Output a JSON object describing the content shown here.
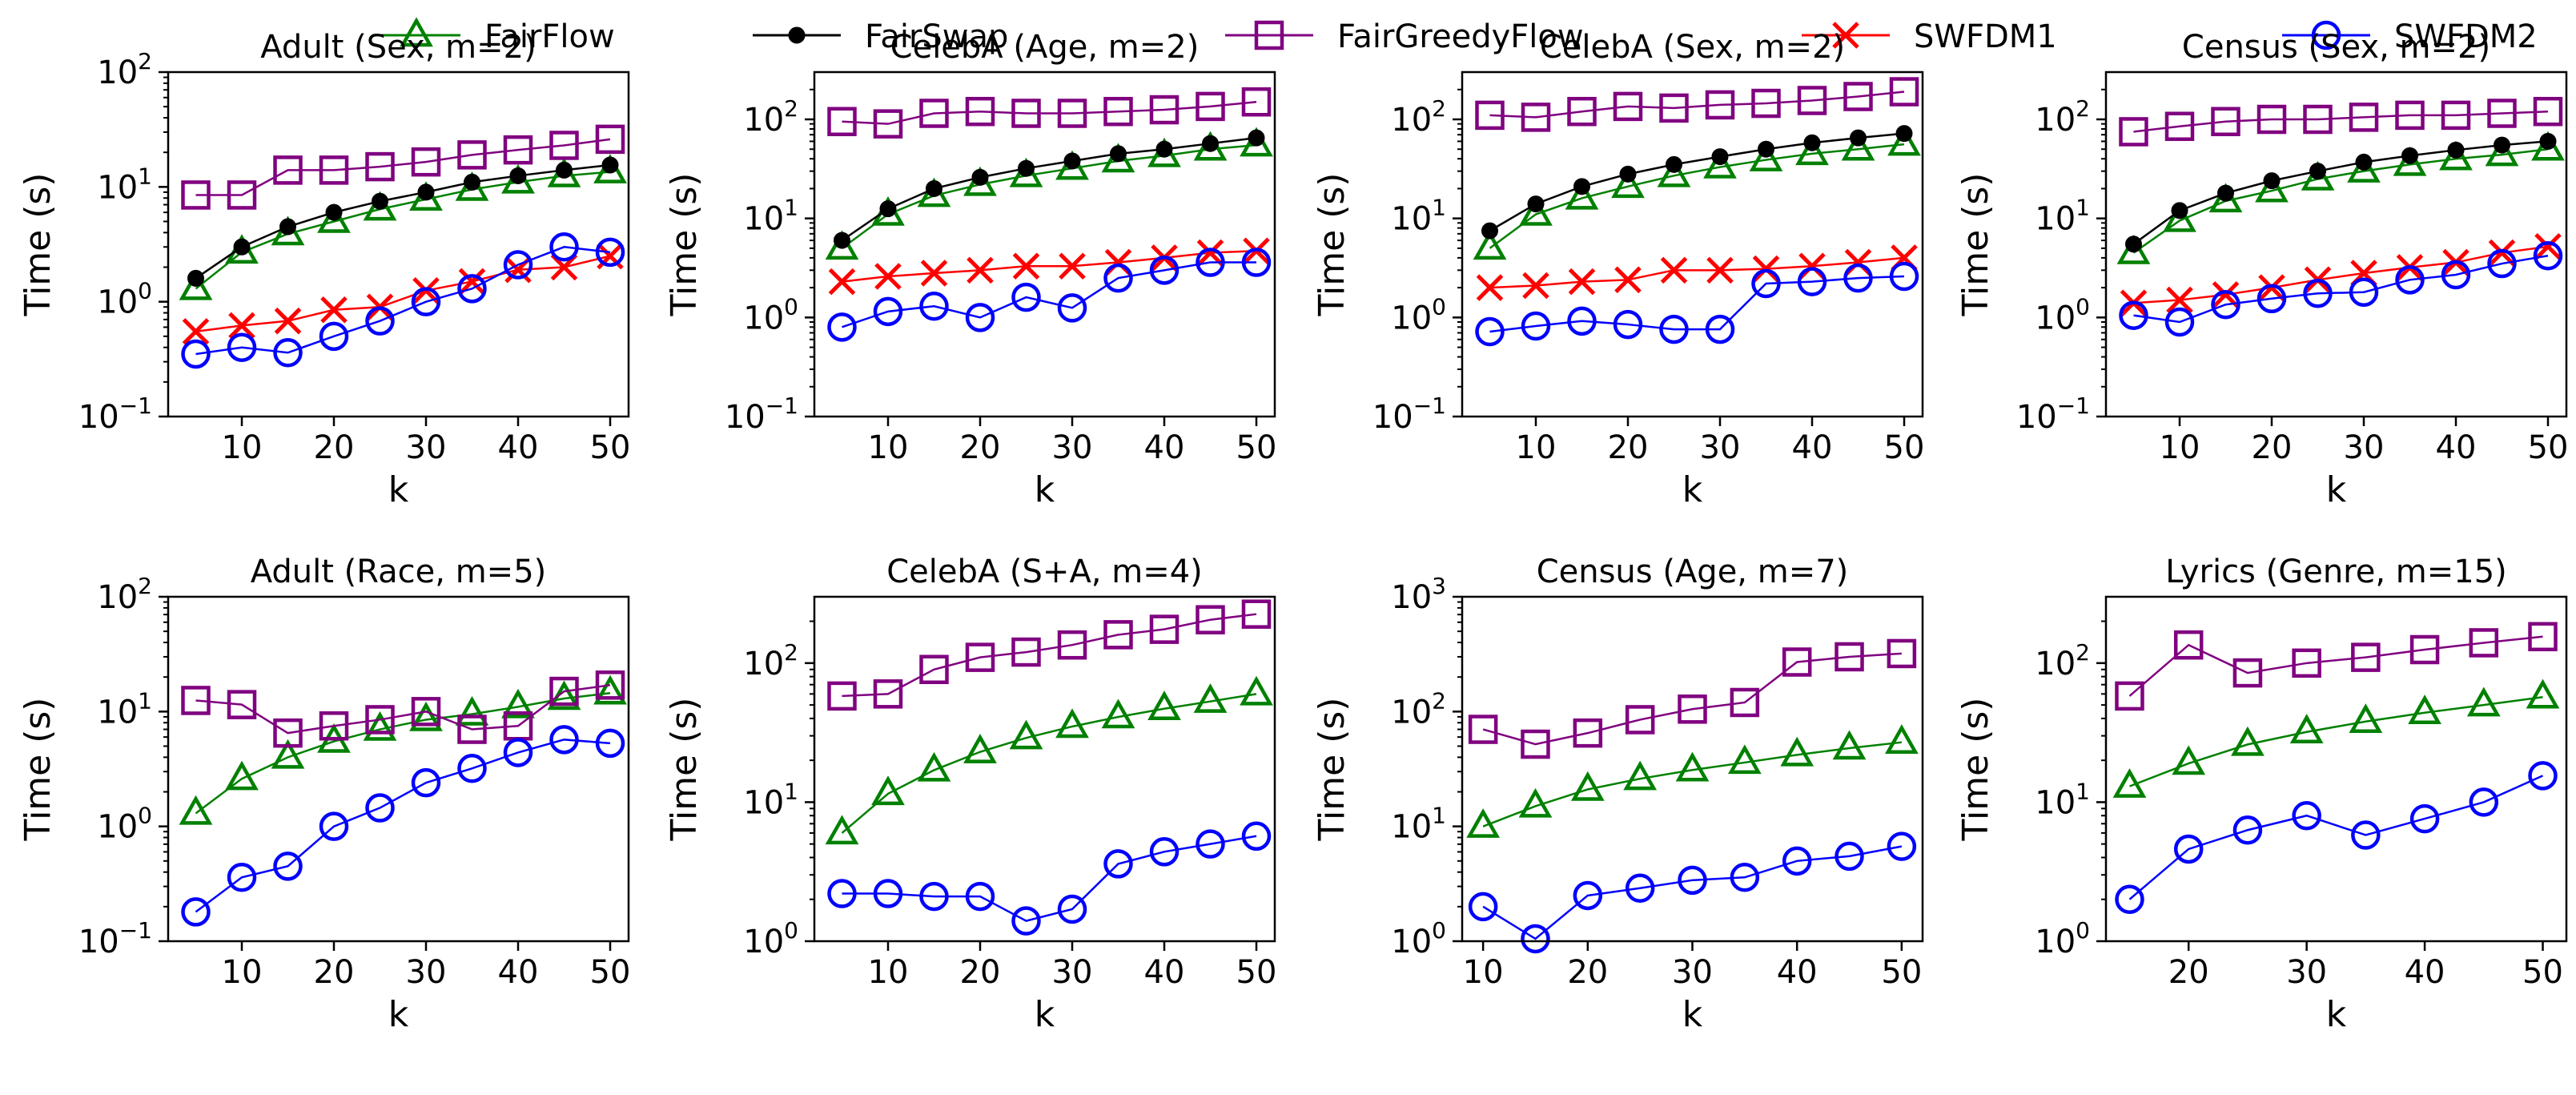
{
  "legend": [
    {
      "name": "FairFlow",
      "color": "#008000",
      "marker": "triangle"
    },
    {
      "name": "FairSwap",
      "color": "#000000",
      "marker": "dot"
    },
    {
      "name": "FairGreedyFlow",
      "color": "#800080",
      "marker": "square"
    },
    {
      "name": "SWFDM1",
      "color": "#ff0000",
      "marker": "x"
    },
    {
      "name": "SWFDM2",
      "color": "#0000ff",
      "marker": "circle"
    }
  ],
  "chart_data": [
    {
      "type": "line",
      "title": "Adult (Sex, m=2)",
      "xlabel": "k",
      "ylabel": "Time (s)",
      "yscale": "log",
      "xlim": [
        2,
        52
      ],
      "ylim": [
        0.1,
        100
      ],
      "xticks": [
        10,
        20,
        30,
        40,
        50
      ],
      "xtick_labels": [
        "10",
        "20",
        "30",
        "40",
        "50"
      ],
      "yticks": [
        0.1,
        1,
        10,
        100
      ],
      "ytick_labels": [
        [
          "10",
          "−1"
        ],
        [
          "10",
          "0"
        ],
        [
          "10",
          "1"
        ],
        [
          "10",
          "2"
        ]
      ],
      "x": [
        5,
        10,
        15,
        20,
        25,
        30,
        35,
        40,
        45,
        50
      ],
      "series": [
        {
          "name": "FairFlow",
          "values": [
            1.3,
            2.7,
            3.9,
            5.0,
            6.4,
            7.8,
            9.5,
            11.0,
            12.5,
            13.5
          ]
        },
        {
          "name": "FairSwap",
          "values": [
            1.6,
            3.0,
            4.5,
            6.0,
            7.5,
            9.0,
            11.0,
            12.5,
            14.0,
            15.5
          ]
        },
        {
          "name": "FairGreedyFlow",
          "values": [
            8.5,
            8.5,
            14.0,
            14.0,
            15.0,
            16.5,
            19.0,
            21.0,
            23.0,
            26.0
          ]
        },
        {
          "name": "SWFDM1",
          "values": [
            0.55,
            0.62,
            0.68,
            0.85,
            0.9,
            1.25,
            1.5,
            1.9,
            2.0,
            2.5
          ]
        },
        {
          "name": "SWFDM2",
          "values": [
            0.35,
            0.4,
            0.36,
            0.5,
            0.68,
            1.0,
            1.3,
            2.1,
            3.0,
            2.7
          ]
        }
      ]
    },
    {
      "type": "line",
      "title": "CelebA (Age, m=2)",
      "xlabel": "k",
      "ylabel": "Time (s)",
      "yscale": "log",
      "xlim": [
        2,
        52
      ],
      "ylim": [
        0.1,
        300
      ],
      "xticks": [
        10,
        20,
        30,
        40,
        50
      ],
      "xtick_labels": [
        "10",
        "20",
        "30",
        "40",
        "50"
      ],
      "yticks": [
        0.1,
        1,
        10,
        100
      ],
      "ytick_labels": [
        [
          "10",
          "−1"
        ],
        [
          "10",
          "0"
        ],
        [
          "10",
          "1"
        ],
        [
          "10",
          "2"
        ]
      ],
      "x": [
        5,
        10,
        15,
        20,
        25,
        30,
        35,
        40,
        45,
        50
      ],
      "series": [
        {
          "name": "FairFlow",
          "values": [
            5.0,
            11.0,
            17.0,
            22.0,
            27.0,
            32.0,
            38.0,
            43.0,
            50.0,
            55.0
          ]
        },
        {
          "name": "FairSwap",
          "values": [
            6.0,
            12.5,
            20.0,
            26.0,
            32.0,
            38.0,
            45.0,
            50.0,
            57.0,
            65.0
          ]
        },
        {
          "name": "FairGreedyFlow",
          "values": [
            95,
            90,
            115,
            120,
            115,
            115,
            120,
            125,
            135,
            150
          ]
        },
        {
          "name": "SWFDM1",
          "values": [
            2.3,
            2.6,
            2.8,
            3.0,
            3.3,
            3.3,
            3.6,
            4.0,
            4.5,
            4.7
          ]
        },
        {
          "name": "SWFDM2",
          "values": [
            0.8,
            1.15,
            1.3,
            1.0,
            1.6,
            1.25,
            2.5,
            3.0,
            3.6,
            3.6
          ]
        }
      ]
    },
    {
      "type": "line",
      "title": "CelebA (Sex, m=2)",
      "xlabel": "k",
      "ylabel": "Time (s)",
      "yscale": "log",
      "xlim": [
        2,
        52
      ],
      "ylim": [
        0.1,
        300
      ],
      "xticks": [
        10,
        20,
        30,
        40,
        50
      ],
      "xtick_labels": [
        "10",
        "20",
        "30",
        "40",
        "50"
      ],
      "yticks": [
        0.1,
        1,
        10,
        100
      ],
      "ytick_labels": [
        [
          "10",
          "−1"
        ],
        [
          "10",
          "0"
        ],
        [
          "10",
          "1"
        ],
        [
          "10",
          "2"
        ]
      ],
      "x": [
        5,
        10,
        15,
        20,
        25,
        30,
        35,
        40,
        45,
        50
      ],
      "series": [
        {
          "name": "FairFlow",
          "values": [
            5.0,
            11.0,
            16.0,
            21.0,
            27.0,
            33.0,
            39.0,
            45.0,
            50.0,
            56.0
          ]
        },
        {
          "name": "FairSwap",
          "values": [
            7.5,
            14.0,
            21.0,
            28.0,
            35.0,
            42.0,
            50.0,
            58.0,
            65.0,
            72.0
          ]
        },
        {
          "name": "FairGreedyFlow",
          "values": [
            110,
            105,
            120,
            135,
            130,
            140,
            145,
            155,
            170,
            190
          ]
        },
        {
          "name": "SWFDM1",
          "values": [
            2.0,
            2.1,
            2.3,
            2.4,
            3.0,
            3.0,
            3.1,
            3.3,
            3.6,
            4.0
          ]
        },
        {
          "name": "SWFDM2",
          "values": [
            0.72,
            0.82,
            0.92,
            0.85,
            0.76,
            0.76,
            2.2,
            2.3,
            2.5,
            2.6
          ]
        }
      ]
    },
    {
      "type": "line",
      "title": "Census (Sex, m=2)",
      "xlabel": "k",
      "ylabel": "Time (s)",
      "yscale": "log",
      "xlim": [
        2,
        52
      ],
      "ylim": [
        0.1,
        300
      ],
      "xticks": [
        10,
        20,
        30,
        40,
        50
      ],
      "xtick_labels": [
        "10",
        "20",
        "30",
        "40",
        "50"
      ],
      "yticks": [
        0.1,
        1,
        10,
        100
      ],
      "ytick_labels": [
        [
          "10",
          "−1"
        ],
        [
          "10",
          "0"
        ],
        [
          "10",
          "1"
        ],
        [
          "10",
          "2"
        ]
      ],
      "x": [
        5,
        10,
        15,
        20,
        25,
        30,
        35,
        40,
        45,
        50
      ],
      "series": [
        {
          "name": "FairFlow",
          "values": [
            4.5,
            9.5,
            15.0,
            19.0,
            25.0,
            30.0,
            35.0,
            40.0,
            44.0,
            50.0
          ]
        },
        {
          "name": "FairSwap",
          "values": [
            5.5,
            12.0,
            18.0,
            24.0,
            30.0,
            37.0,
            43.0,
            49.0,
            55.0,
            60.0
          ]
        },
        {
          "name": "FairGreedyFlow",
          "values": [
            75,
            85,
            95,
            100,
            100,
            105,
            110,
            110,
            115,
            120
          ]
        },
        {
          "name": "SWFDM1",
          "values": [
            1.4,
            1.5,
            1.7,
            2.0,
            2.4,
            2.8,
            3.2,
            3.6,
            4.5,
            5.2
          ]
        },
        {
          "name": "SWFDM2",
          "values": [
            1.05,
            0.9,
            1.35,
            1.55,
            1.75,
            1.8,
            2.4,
            2.7,
            3.5,
            4.2
          ]
        }
      ]
    },
    {
      "type": "line",
      "title": "Adult (Race, m=5)",
      "xlabel": "k",
      "ylabel": "Time (s)",
      "yscale": "log",
      "xlim": [
        2,
        52
      ],
      "ylim": [
        0.1,
        100
      ],
      "xticks": [
        10,
        20,
        30,
        40,
        50
      ],
      "xtick_labels": [
        "10",
        "20",
        "30",
        "40",
        "50"
      ],
      "yticks": [
        0.1,
        1,
        10,
        100
      ],
      "ytick_labels": [
        [
          "10",
          "−1"
        ],
        [
          "10",
          "0"
        ],
        [
          "10",
          "1"
        ],
        [
          "10",
          "2"
        ]
      ],
      "x": [
        5,
        10,
        15,
        20,
        25,
        30,
        35,
        40,
        45,
        50
      ],
      "series": [
        {
          "name": "FairFlow",
          "values": [
            1.3,
            2.6,
            4.0,
            5.5,
            7.0,
            8.5,
            9.5,
            11.0,
            13.0,
            14.5
          ]
        },
        {
          "name": "FairGreedyFlow",
          "values": [
            12.5,
            11.5,
            6.5,
            7.5,
            8.5,
            10.0,
            7.0,
            7.5,
            15.0,
            17.0
          ]
        },
        {
          "name": "SWFDM2",
          "values": [
            0.18,
            0.36,
            0.45,
            1.0,
            1.45,
            2.4,
            3.2,
            4.4,
            5.7,
            5.3
          ]
        }
      ]
    },
    {
      "type": "line",
      "title": "CelebA (S+A, m=4)",
      "xlabel": "k",
      "ylabel": "Time (s)",
      "yscale": "log",
      "xlim": [
        2,
        52
      ],
      "ylim": [
        1,
        300
      ],
      "xticks": [
        10,
        20,
        30,
        40,
        50
      ],
      "xtick_labels": [
        "10",
        "20",
        "30",
        "40",
        "50"
      ],
      "yticks": [
        1,
        10,
        100
      ],
      "ytick_labels": [
        [
          "10",
          "0"
        ],
        [
          "10",
          "1"
        ],
        [
          "10",
          "2"
        ]
      ],
      "x": [
        5,
        10,
        15,
        20,
        25,
        30,
        35,
        40,
        45,
        50
      ],
      "series": [
        {
          "name": "FairFlow",
          "values": [
            6.0,
            11.5,
            17.0,
            23.0,
            29.0,
            35.0,
            41.0,
            47.0,
            53.0,
            60.0
          ]
        },
        {
          "name": "FairGreedyFlow",
          "values": [
            58,
            60,
            90,
            110,
            120,
            135,
            160,
            175,
            205,
            225
          ]
        },
        {
          "name": "SWFDM2",
          "values": [
            2.2,
            2.2,
            2.1,
            2.1,
            1.4,
            1.7,
            3.6,
            4.4,
            5.0,
            5.7
          ]
        }
      ]
    },
    {
      "type": "line",
      "title": "Census (Age, m=7)",
      "xlabel": "k",
      "ylabel": "Time (s)",
      "yscale": "log",
      "xlim": [
        8,
        52
      ],
      "ylim": [
        1,
        1000
      ],
      "xticks": [
        10,
        20,
        30,
        40,
        50
      ],
      "xtick_labels": [
        "10",
        "20",
        "30",
        "40",
        "50"
      ],
      "yticks": [
        1,
        10,
        100,
        1000
      ],
      "ytick_labels": [
        [
          "10",
          "0"
        ],
        [
          "10",
          "1"
        ],
        [
          "10",
          "2"
        ],
        [
          "10",
          "3"
        ]
      ],
      "x": [
        10,
        15,
        20,
        25,
        30,
        35,
        40,
        45,
        50
      ],
      "series": [
        {
          "name": "FairFlow",
          "values": [
            10.0,
            15.0,
            21.0,
            26.0,
            31.0,
            36.0,
            42.0,
            48.0,
            54.0
          ]
        },
        {
          "name": "FairGreedyFlow",
          "values": [
            70,
            52,
            65,
            85,
            105,
            120,
            270,
            300,
            320
          ]
        },
        {
          "name": "SWFDM2",
          "values": [
            2.0,
            1.05,
            2.5,
            2.9,
            3.4,
            3.6,
            5.0,
            5.5,
            6.7
          ]
        }
      ]
    },
    {
      "type": "line",
      "title": "Lyrics (Genre, m=15)",
      "xlabel": "k",
      "ylabel": "Time (s)",
      "yscale": "log",
      "xlim": [
        13,
        52
      ],
      "ylim": [
        1,
        300
      ],
      "xticks": [
        20,
        30,
        40,
        50
      ],
      "xtick_labels": [
        "20",
        "30",
        "40",
        "50"
      ],
      "yticks": [
        1,
        10,
        100
      ],
      "ytick_labels": [
        [
          "10",
          "0"
        ],
        [
          "10",
          "1"
        ],
        [
          "10",
          "2"
        ]
      ],
      "x": [
        15,
        20,
        25,
        30,
        35,
        40,
        45,
        50
      ],
      "series": [
        {
          "name": "FairFlow",
          "values": [
            13.0,
            19.0,
            26.0,
            32.0,
            38.0,
            44.0,
            50.0,
            57.0
          ]
        },
        {
          "name": "FairGreedyFlow",
          "values": [
            58,
            135,
            85,
            100,
            110,
            125,
            140,
            155
          ]
        },
        {
          "name": "SWFDM2",
          "values": [
            2.0,
            4.6,
            6.3,
            8.0,
            5.8,
            7.6,
            10.0,
            15.5
          ]
        }
      ]
    }
  ]
}
